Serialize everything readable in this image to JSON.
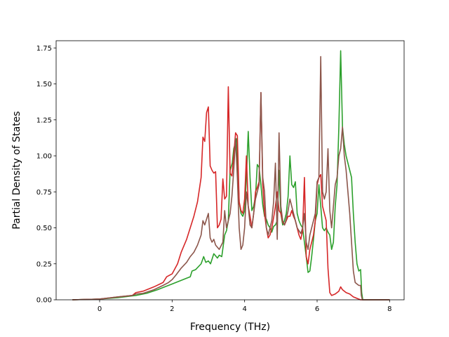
{
  "chart_data": {
    "type": "line",
    "title": "",
    "xlabel": "Frequency (THz)",
    "ylabel": "Partial Density of States",
    "xlim": [
      -1.2,
      8.4
    ],
    "ylim": [
      0,
      1.8
    ],
    "xticks": [
      0,
      2,
      4,
      6,
      8
    ],
    "xtick_labels": [
      "0",
      "2",
      "4",
      "6",
      "8"
    ],
    "yticks": [
      0,
      0.25,
      0.5,
      0.75,
      1.0,
      1.25,
      1.5,
      1.75
    ],
    "ytick_labels": [
      "0.00",
      "0.25",
      "0.50",
      "0.75",
      "1.00",
      "1.25",
      "1.50",
      "1.75"
    ],
    "grid": false,
    "legend": "none",
    "series": [
      {
        "color": "#2ca02c",
        "points": [
          [
            -0.75,
            0
          ],
          [
            0,
            0.005
          ],
          [
            0.5,
            0.015
          ],
          [
            1.0,
            0.03
          ],
          [
            1.3,
            0.045
          ],
          [
            1.6,
            0.07
          ],
          [
            1.8,
            0.09
          ],
          [
            1.9,
            0.1
          ],
          [
            2.0,
            0.11
          ],
          [
            2.2,
            0.13
          ],
          [
            2.4,
            0.15
          ],
          [
            2.5,
            0.16
          ],
          [
            2.55,
            0.2
          ],
          [
            2.65,
            0.21
          ],
          [
            2.8,
            0.25
          ],
          [
            2.87,
            0.3
          ],
          [
            2.93,
            0.26
          ],
          [
            3.0,
            0.27
          ],
          [
            3.06,
            0.25
          ],
          [
            3.15,
            0.32
          ],
          [
            3.25,
            0.29
          ],
          [
            3.3,
            0.31
          ],
          [
            3.37,
            0.3
          ],
          [
            3.45,
            0.45
          ],
          [
            3.5,
            0.48
          ],
          [
            3.55,
            0.55
          ],
          [
            3.6,
            0.9
          ],
          [
            3.66,
            0.95
          ],
          [
            3.7,
            1.05
          ],
          [
            3.78,
            1.12
          ],
          [
            3.85,
            0.68
          ],
          [
            3.9,
            0.6
          ],
          [
            3.95,
            0.58
          ],
          [
            4.0,
            0.62
          ],
          [
            4.05,
            0.85
          ],
          [
            4.1,
            1.17
          ],
          [
            4.15,
            0.85
          ],
          [
            4.2,
            0.62
          ],
          [
            4.25,
            0.65
          ],
          [
            4.3,
            0.72
          ],
          [
            4.35,
            0.94
          ],
          [
            4.4,
            0.92
          ],
          [
            4.45,
            0.8
          ],
          [
            4.5,
            0.66
          ],
          [
            4.55,
            0.58
          ],
          [
            4.6,
            0.56
          ],
          [
            4.65,
            0.52
          ],
          [
            4.7,
            0.5
          ],
          [
            4.75,
            0.47
          ],
          [
            4.8,
            0.51
          ],
          [
            4.85,
            0.52
          ],
          [
            4.9,
            0.55
          ],
          [
            4.95,
            0.9
          ],
          [
            5.0,
            0.6
          ],
          [
            5.05,
            0.52
          ],
          [
            5.1,
            0.55
          ],
          [
            5.15,
            0.6
          ],
          [
            5.2,
            0.72
          ],
          [
            5.25,
            1.0
          ],
          [
            5.3,
            0.8
          ],
          [
            5.35,
            0.78
          ],
          [
            5.4,
            0.82
          ],
          [
            5.45,
            0.6
          ],
          [
            5.5,
            0.55
          ],
          [
            5.55,
            0.52
          ],
          [
            5.6,
            0.5
          ],
          [
            5.65,
            0.4
          ],
          [
            5.7,
            0.3
          ],
          [
            5.75,
            0.19
          ],
          [
            5.8,
            0.2
          ],
          [
            5.85,
            0.3
          ],
          [
            5.9,
            0.42
          ],
          [
            5.95,
            0.55
          ],
          [
            6.0,
            0.6
          ],
          [
            6.05,
            0.8
          ],
          [
            6.1,
            0.65
          ],
          [
            6.15,
            0.5
          ],
          [
            6.2,
            0.48
          ],
          [
            6.25,
            0.5
          ],
          [
            6.3,
            0.47
          ],
          [
            6.35,
            0.45
          ],
          [
            6.4,
            0.35
          ],
          [
            6.45,
            0.4
          ],
          [
            6.5,
            0.65
          ],
          [
            6.55,
            0.8
          ],
          [
            6.6,
            1.2
          ],
          [
            6.65,
            1.73
          ],
          [
            6.7,
            1.2
          ],
          [
            6.75,
            1.08
          ],
          [
            6.8,
            1.0
          ],
          [
            6.85,
            0.95
          ],
          [
            6.9,
            0.9
          ],
          [
            6.95,
            0.85
          ],
          [
            7.0,
            0.6
          ],
          [
            7.05,
            0.4
          ],
          [
            7.1,
            0.25
          ],
          [
            7.15,
            0.2
          ],
          [
            7.2,
            0.21
          ],
          [
            7.23,
            0.05
          ],
          [
            7.26,
            0.0
          ],
          [
            8.0,
            0
          ]
        ]
      },
      {
        "color": "#d62728",
        "points": [
          [
            -0.75,
            0
          ],
          [
            0,
            0.005
          ],
          [
            0.5,
            0.02
          ],
          [
            0.9,
            0.03
          ],
          [
            1.0,
            0.05
          ],
          [
            1.2,
            0.06
          ],
          [
            1.5,
            0.09
          ],
          [
            1.75,
            0.12
          ],
          [
            1.85,
            0.16
          ],
          [
            2.0,
            0.18
          ],
          [
            2.15,
            0.25
          ],
          [
            2.25,
            0.33
          ],
          [
            2.4,
            0.42
          ],
          [
            2.5,
            0.5
          ],
          [
            2.6,
            0.58
          ],
          [
            2.7,
            0.68
          ],
          [
            2.8,
            0.85
          ],
          [
            2.85,
            1.13
          ],
          [
            2.9,
            1.1
          ],
          [
            2.95,
            1.3
          ],
          [
            3.0,
            1.34
          ],
          [
            3.05,
            0.93
          ],
          [
            3.1,
            0.9
          ],
          [
            3.15,
            0.88
          ],
          [
            3.2,
            0.89
          ],
          [
            3.25,
            0.5
          ],
          [
            3.3,
            0.52
          ],
          [
            3.35,
            0.56
          ],
          [
            3.4,
            0.84
          ],
          [
            3.45,
            0.7
          ],
          [
            3.5,
            0.72
          ],
          [
            3.55,
            1.48
          ],
          [
            3.6,
            0.88
          ],
          [
            3.65,
            0.86
          ],
          [
            3.7,
            1.0
          ],
          [
            3.75,
            1.16
          ],
          [
            3.8,
            1.14
          ],
          [
            3.85,
            0.68
          ],
          [
            3.9,
            0.62
          ],
          [
            3.95,
            0.6
          ],
          [
            4.0,
            0.7
          ],
          [
            4.05,
            1.0
          ],
          [
            4.1,
            0.65
          ],
          [
            4.15,
            0.58
          ],
          [
            4.2,
            0.5
          ],
          [
            4.25,
            0.6
          ],
          [
            4.3,
            0.75
          ],
          [
            4.35,
            0.78
          ],
          [
            4.4,
            0.82
          ],
          [
            4.45,
            1.44
          ],
          [
            4.5,
            0.8
          ],
          [
            4.55,
            0.6
          ],
          [
            4.6,
            0.5
          ],
          [
            4.65,
            0.43
          ],
          [
            4.7,
            0.45
          ],
          [
            4.75,
            0.5
          ],
          [
            4.8,
            0.57
          ],
          [
            4.85,
            0.65
          ],
          [
            4.9,
            0.75
          ],
          [
            4.95,
            0.62
          ],
          [
            5.0,
            0.6
          ],
          [
            5.05,
            0.54
          ],
          [
            5.1,
            0.52
          ],
          [
            5.15,
            0.55
          ],
          [
            5.2,
            0.58
          ],
          [
            5.25,
            0.58
          ],
          [
            5.3,
            0.62
          ],
          [
            5.35,
            0.58
          ],
          [
            5.4,
            0.55
          ],
          [
            5.45,
            0.5
          ],
          [
            5.5,
            0.45
          ],
          [
            5.55,
            0.42
          ],
          [
            5.6,
            0.48
          ],
          [
            5.65,
            0.85
          ],
          [
            5.7,
            0.3
          ],
          [
            5.75,
            0.25
          ],
          [
            5.8,
            0.35
          ],
          [
            5.85,
            0.4
          ],
          [
            5.9,
            0.45
          ],
          [
            5.95,
            0.55
          ],
          [
            6.0,
            0.8
          ],
          [
            6.05,
            0.85
          ],
          [
            6.1,
            0.87
          ],
          [
            6.15,
            0.65
          ],
          [
            6.2,
            0.6
          ],
          [
            6.25,
            0.55
          ],
          [
            6.3,
            0.22
          ],
          [
            6.35,
            0.05
          ],
          [
            6.4,
            0.03
          ],
          [
            6.5,
            0.04
          ],
          [
            6.6,
            0.06
          ],
          [
            6.65,
            0.09
          ],
          [
            6.7,
            0.07
          ],
          [
            6.8,
            0.05
          ],
          [
            6.9,
            0.04
          ],
          [
            7.0,
            0.02
          ],
          [
            7.1,
            0.01
          ],
          [
            7.2,
            0.0
          ],
          [
            8.0,
            0
          ]
        ]
      },
      {
        "color": "#8c564b",
        "points": [
          [
            -0.75,
            0
          ],
          [
            0,
            0.005
          ],
          [
            0.5,
            0.02
          ],
          [
            0.9,
            0.03
          ],
          [
            1.0,
            0.04
          ],
          [
            1.2,
            0.045
          ],
          [
            1.5,
            0.07
          ],
          [
            1.75,
            0.1
          ],
          [
            1.9,
            0.12
          ],
          [
            2.0,
            0.14
          ],
          [
            2.1,
            0.17
          ],
          [
            2.25,
            0.22
          ],
          [
            2.4,
            0.26
          ],
          [
            2.5,
            0.3
          ],
          [
            2.6,
            0.33
          ],
          [
            2.7,
            0.38
          ],
          [
            2.8,
            0.45
          ],
          [
            2.85,
            0.55
          ],
          [
            2.9,
            0.52
          ],
          [
            2.95,
            0.56
          ],
          [
            3.0,
            0.6
          ],
          [
            3.05,
            0.43
          ],
          [
            3.1,
            0.4
          ],
          [
            3.15,
            0.42
          ],
          [
            3.2,
            0.38
          ],
          [
            3.3,
            0.35
          ],
          [
            3.4,
            0.4
          ],
          [
            3.45,
            0.62
          ],
          [
            3.5,
            0.5
          ],
          [
            3.55,
            0.55
          ],
          [
            3.6,
            0.6
          ],
          [
            3.65,
            0.72
          ],
          [
            3.7,
            0.9
          ],
          [
            3.75,
            1.12
          ],
          [
            3.8,
            0.85
          ],
          [
            3.85,
            0.5
          ],
          [
            3.9,
            0.35
          ],
          [
            3.95,
            0.38
          ],
          [
            4.0,
            0.5
          ],
          [
            4.05,
            0.75
          ],
          [
            4.1,
            0.65
          ],
          [
            4.15,
            0.52
          ],
          [
            4.2,
            0.5
          ],
          [
            4.25,
            0.6
          ],
          [
            4.3,
            0.7
          ],
          [
            4.35,
            0.75
          ],
          [
            4.4,
            0.8
          ],
          [
            4.45,
            1.44
          ],
          [
            4.5,
            0.85
          ],
          [
            4.55,
            0.75
          ],
          [
            4.6,
            0.5
          ],
          [
            4.65,
            0.45
          ],
          [
            4.7,
            0.5
          ],
          [
            4.75,
            0.55
          ],
          [
            4.8,
            0.68
          ],
          [
            4.85,
            0.95
          ],
          [
            4.9,
            0.42
          ],
          [
            4.95,
            1.16
          ],
          [
            5.0,
            0.65
          ],
          [
            5.05,
            0.55
          ],
          [
            5.1,
            0.52
          ],
          [
            5.15,
            0.56
          ],
          [
            5.2,
            0.62
          ],
          [
            5.25,
            0.7
          ],
          [
            5.3,
            0.65
          ],
          [
            5.35,
            0.6
          ],
          [
            5.4,
            0.55
          ],
          [
            5.45,
            0.5
          ],
          [
            5.5,
            0.48
          ],
          [
            5.55,
            0.46
          ],
          [
            5.6,
            0.5
          ],
          [
            5.65,
            0.6
          ],
          [
            5.7,
            0.4
          ],
          [
            5.75,
            0.35
          ],
          [
            5.8,
            0.45
          ],
          [
            5.85,
            0.5
          ],
          [
            5.9,
            0.55
          ],
          [
            5.95,
            0.6
          ],
          [
            6.0,
            0.82
          ],
          [
            6.05,
            0.85
          ],
          [
            6.1,
            1.69
          ],
          [
            6.15,
            0.75
          ],
          [
            6.2,
            0.7
          ],
          [
            6.25,
            0.75
          ],
          [
            6.3,
            1.05
          ],
          [
            6.35,
            0.62
          ],
          [
            6.4,
            0.5
          ],
          [
            6.45,
            0.65
          ],
          [
            6.5,
            0.8
          ],
          [
            6.55,
            0.85
          ],
          [
            6.6,
            1.0
          ],
          [
            6.65,
            1.05
          ],
          [
            6.7,
            1.2
          ],
          [
            6.75,
            1.0
          ],
          [
            6.8,
            0.9
          ],
          [
            6.85,
            0.75
          ],
          [
            6.9,
            0.6
          ],
          [
            6.95,
            0.4
          ],
          [
            7.0,
            0.2
          ],
          [
            7.05,
            0.12
          ],
          [
            7.1,
            0.11
          ],
          [
            7.15,
            0.1
          ],
          [
            7.2,
            0.1
          ],
          [
            7.22,
            0.03
          ],
          [
            7.25,
            0.0
          ],
          [
            8.0,
            0
          ]
        ]
      }
    ]
  }
}
